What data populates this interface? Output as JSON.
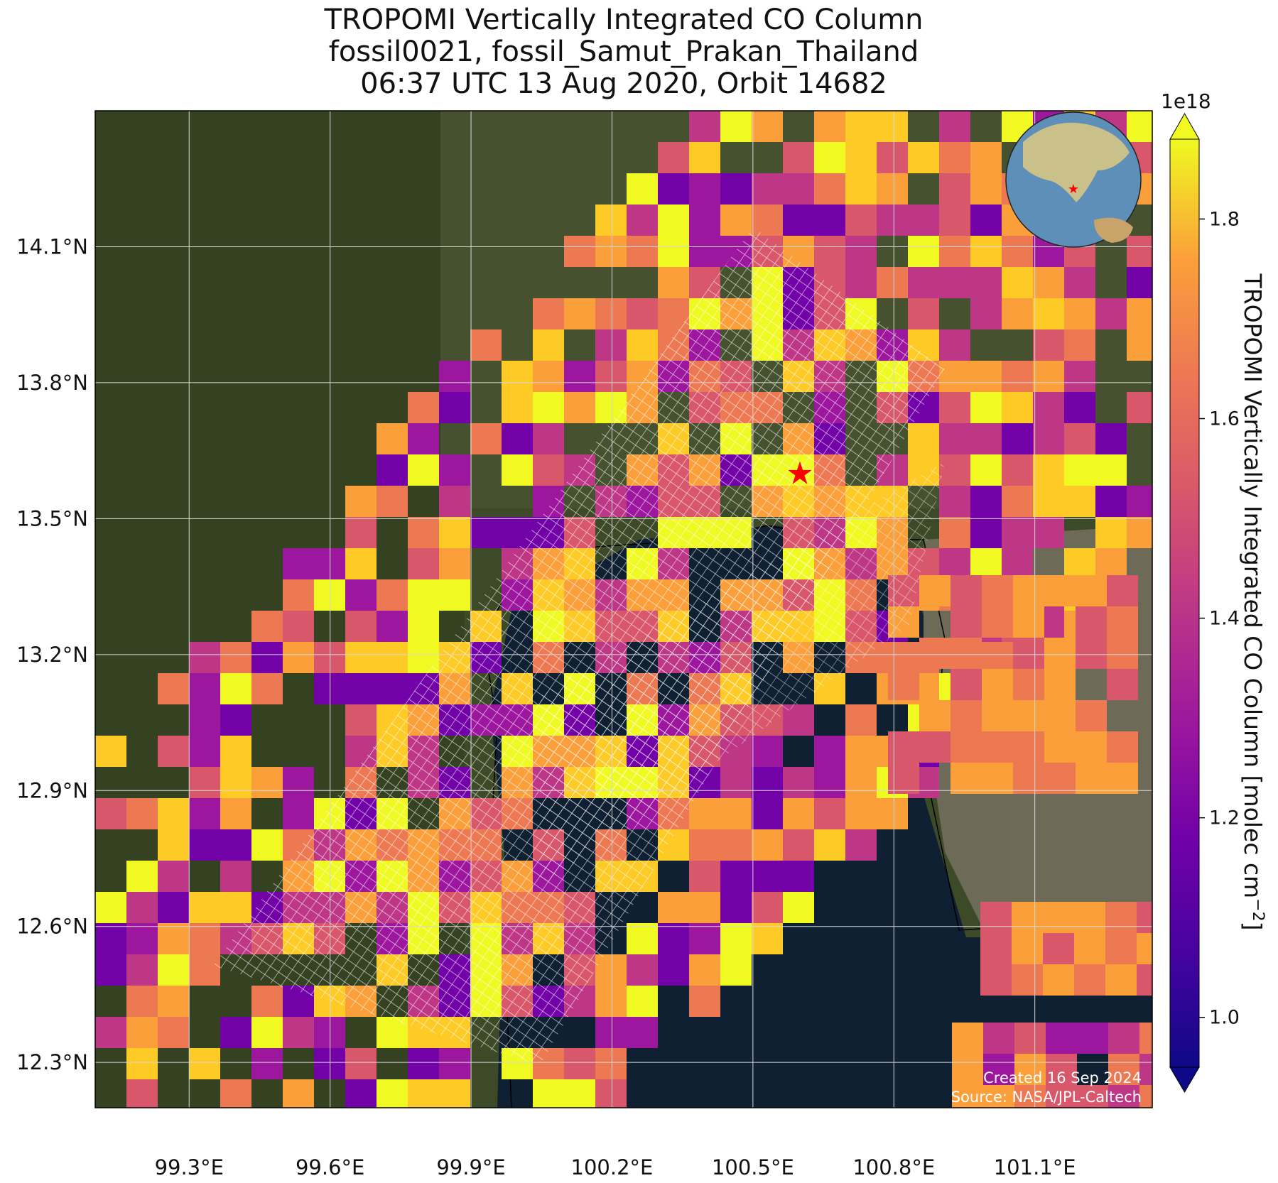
{
  "title": {
    "line1": "TROPOMI Vertically Integrated CO Column",
    "line2": "fossil0021, fossil_Samut_Prakan_Thailand",
    "line3": "06:37 UTC 13 Aug 2020, Orbit 14682"
  },
  "map": {
    "lon_ticks": [
      "99.3°E",
      "99.6°E",
      "99.9°E",
      "100.2°E",
      "100.5°E",
      "100.8°E",
      "101.1°E"
    ],
    "lon_values": [
      99.3,
      99.6,
      99.9,
      100.2,
      100.5,
      100.8,
      101.1
    ],
    "lat_ticks": [
      "14.1°N",
      "13.8°N",
      "13.5°N",
      "13.2°N",
      "12.9°N",
      "12.6°N",
      "12.3°N"
    ],
    "lat_values": [
      14.1,
      13.8,
      13.5,
      13.2,
      12.9,
      12.6,
      12.3
    ],
    "lon_range": [
      99.1,
      101.35
    ],
    "lat_range": [
      12.2,
      14.4
    ],
    "marker": {
      "name": "Samut Prakan",
      "lon": 100.6,
      "lat": 13.6,
      "color": "#ff0000",
      "icon": "star-icon"
    },
    "credits": {
      "line1": "Created 16 Sep 2024",
      "line2": "Source: NASA/JPL-Caltech"
    }
  },
  "colorbar": {
    "label": "TROPOMI Vertically Integrated CO Column [molec cm",
    "label_sup": "−2",
    "label_end": "]",
    "exponent": "1e18",
    "ticks": [
      "1.0",
      "1.2",
      "1.4",
      "1.6",
      "1.8"
    ],
    "tick_values": [
      1.0,
      1.2,
      1.4,
      1.6,
      1.8
    ],
    "range": [
      0.95,
      1.88
    ],
    "colormap": "plasma"
  },
  "colors": {
    "land": "#3d4a28",
    "sea": "#0f2033",
    "grid": "#d8d8d8",
    "pixel_high": "#f0f921",
    "pixel_low": "#0d0887"
  }
}
